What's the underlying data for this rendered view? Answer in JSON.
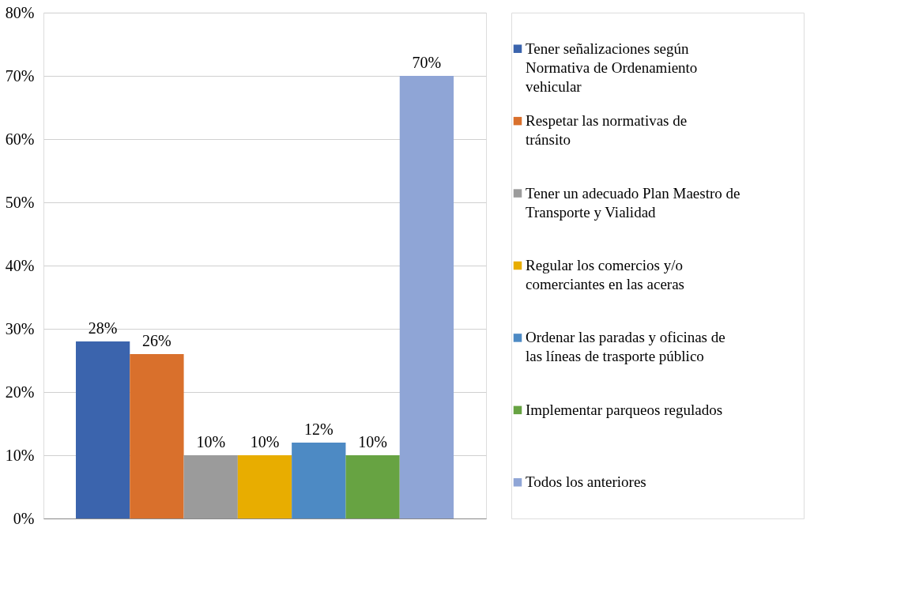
{
  "chart_data": {
    "type": "bar",
    "categories": [
      null
    ],
    "series": [
      {
        "name": "Tener señalizaciones según Normativa de Ordenamiento vehicular",
        "color": "#3b64ad",
        "values": [
          28
        ],
        "value_labels": [
          "28%"
        ]
      },
      {
        "name": "Respetar las normativas de tránsito",
        "color": "#d9702c",
        "values": [
          26
        ],
        "value_labels": [
          "26%"
        ]
      },
      {
        "name": "Tener un adecuado Plan Maestro de Transporte y Vialidad",
        "color": "#9b9b9b",
        "values": [
          10
        ],
        "value_labels": [
          "10%"
        ]
      },
      {
        "name": "Regular los comercios y/o comerciantes en las aceras",
        "color": "#e8ad00",
        "values": [
          10
        ],
        "value_labels": [
          "10%"
        ]
      },
      {
        "name": "Ordenar las paradas y oficinas de las líneas de trasporte público",
        "color": "#4d8ac4",
        "values": [
          12
        ],
        "value_labels": [
          "12%"
        ]
      },
      {
        "name": "Implementar parqueos regulados",
        "color": "#67a342",
        "values": [
          10
        ],
        "value_labels": [
          "10%"
        ]
      },
      {
        "name": "Todos los anteriores",
        "color": "#8fa5d6",
        "values": [
          70
        ],
        "value_labels": [
          "70%"
        ]
      }
    ],
    "ylim": [
      0,
      80
    ],
    "yticks": [
      {
        "value": 0,
        "label": "0%"
      },
      {
        "value": 10,
        "label": "10%"
      },
      {
        "value": 20,
        "label": "20%"
      },
      {
        "value": 30,
        "label": "30%"
      },
      {
        "value": 40,
        "label": "40%"
      },
      {
        "value": 50,
        "label": "50%"
      },
      {
        "value": 60,
        "label": "60%"
      },
      {
        "value": 70,
        "label": "70%"
      },
      {
        "value": 80,
        "label": "80%"
      }
    ],
    "grid": "y",
    "legend": "right"
  }
}
